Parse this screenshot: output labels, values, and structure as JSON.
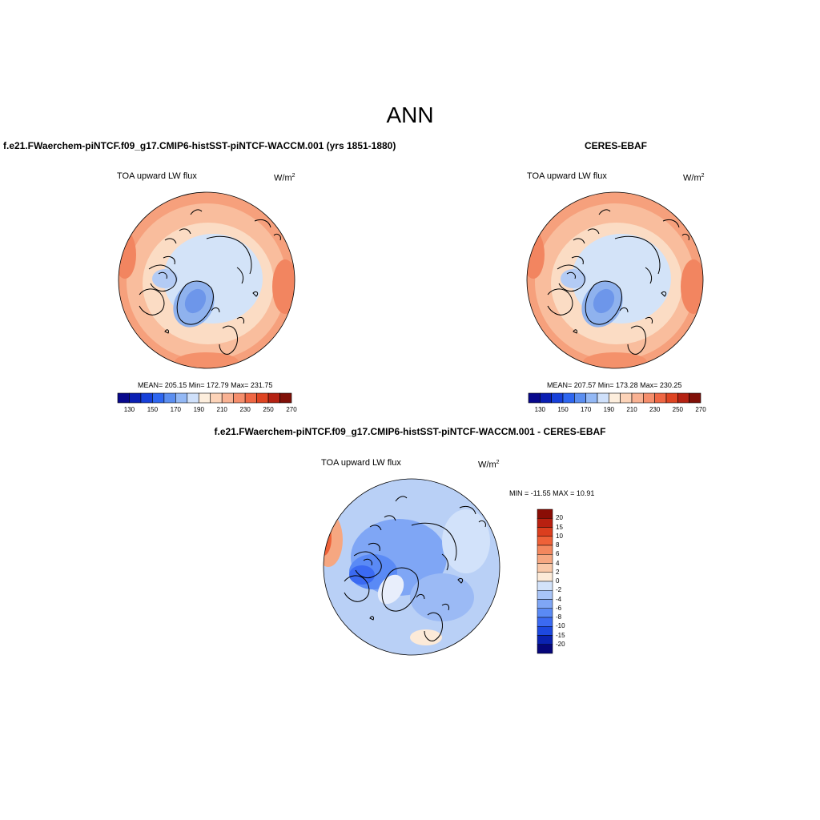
{
  "main_title": "ANN",
  "colors": {
    "abs_scale": [
      "#08088c",
      "#0b1fb3",
      "#1740d9",
      "#2e66f0",
      "#5b8ef0",
      "#93b8f5",
      "#cfe0fa",
      "#fdeedd",
      "#fcd3b8",
      "#f9b293",
      "#f58e6c",
      "#ef6744",
      "#de4422",
      "#b52213",
      "#801008"
    ],
    "diff_scale": [
      "#06067a",
      "#0a22b0",
      "#1d49e0",
      "#3b6af2",
      "#5a8af5",
      "#7fa6f5",
      "#a8c4f7",
      "#d2e2fa",
      "#fcead8",
      "#f9c8a8",
      "#f6a781",
      "#f3875e",
      "#ee6138",
      "#db3e1e",
      "#b82010",
      "#8a0d05"
    ]
  },
  "panels": [
    {
      "title": "f.e21.FWaerchem-piNTCF.f09_g17.CMIP6-histSST-piNTCF-WACCM.001 (yrs 1851-1880)",
      "variable": "TOA upward LW flux",
      "units": "W/m",
      "units_exp": "2",
      "stats": "MEAN= 205.15   Min= 172.79   Max= 231.75"
    },
    {
      "title": "CERES-EBAF",
      "variable": "TOA upward LW flux",
      "units": "W/m",
      "units_exp": "2",
      "stats": "MEAN= 207.57   Min= 173.28   Max= 230.25"
    },
    {
      "title": "f.e21.FWaerchem-piNTCF.f09_g17.CMIP6-histSST-piNTCF-WACCM.001 - CERES-EBAF",
      "variable": "TOA upward LW flux",
      "units": "W/m",
      "units_exp": "2",
      "stats": "MIN = -11.55 MAX =  10.91"
    }
  ],
  "abs_colorbar_labels": [
    "130",
    "150",
    "170",
    "190",
    "210",
    "230",
    "250",
    "270"
  ],
  "diff_colorbar_labels": [
    "20",
    "15",
    "10",
    "8",
    "6",
    "4",
    "2",
    "0",
    "-2",
    "-4",
    "-6",
    "-8",
    "-10",
    "-15",
    "-20"
  ]
}
